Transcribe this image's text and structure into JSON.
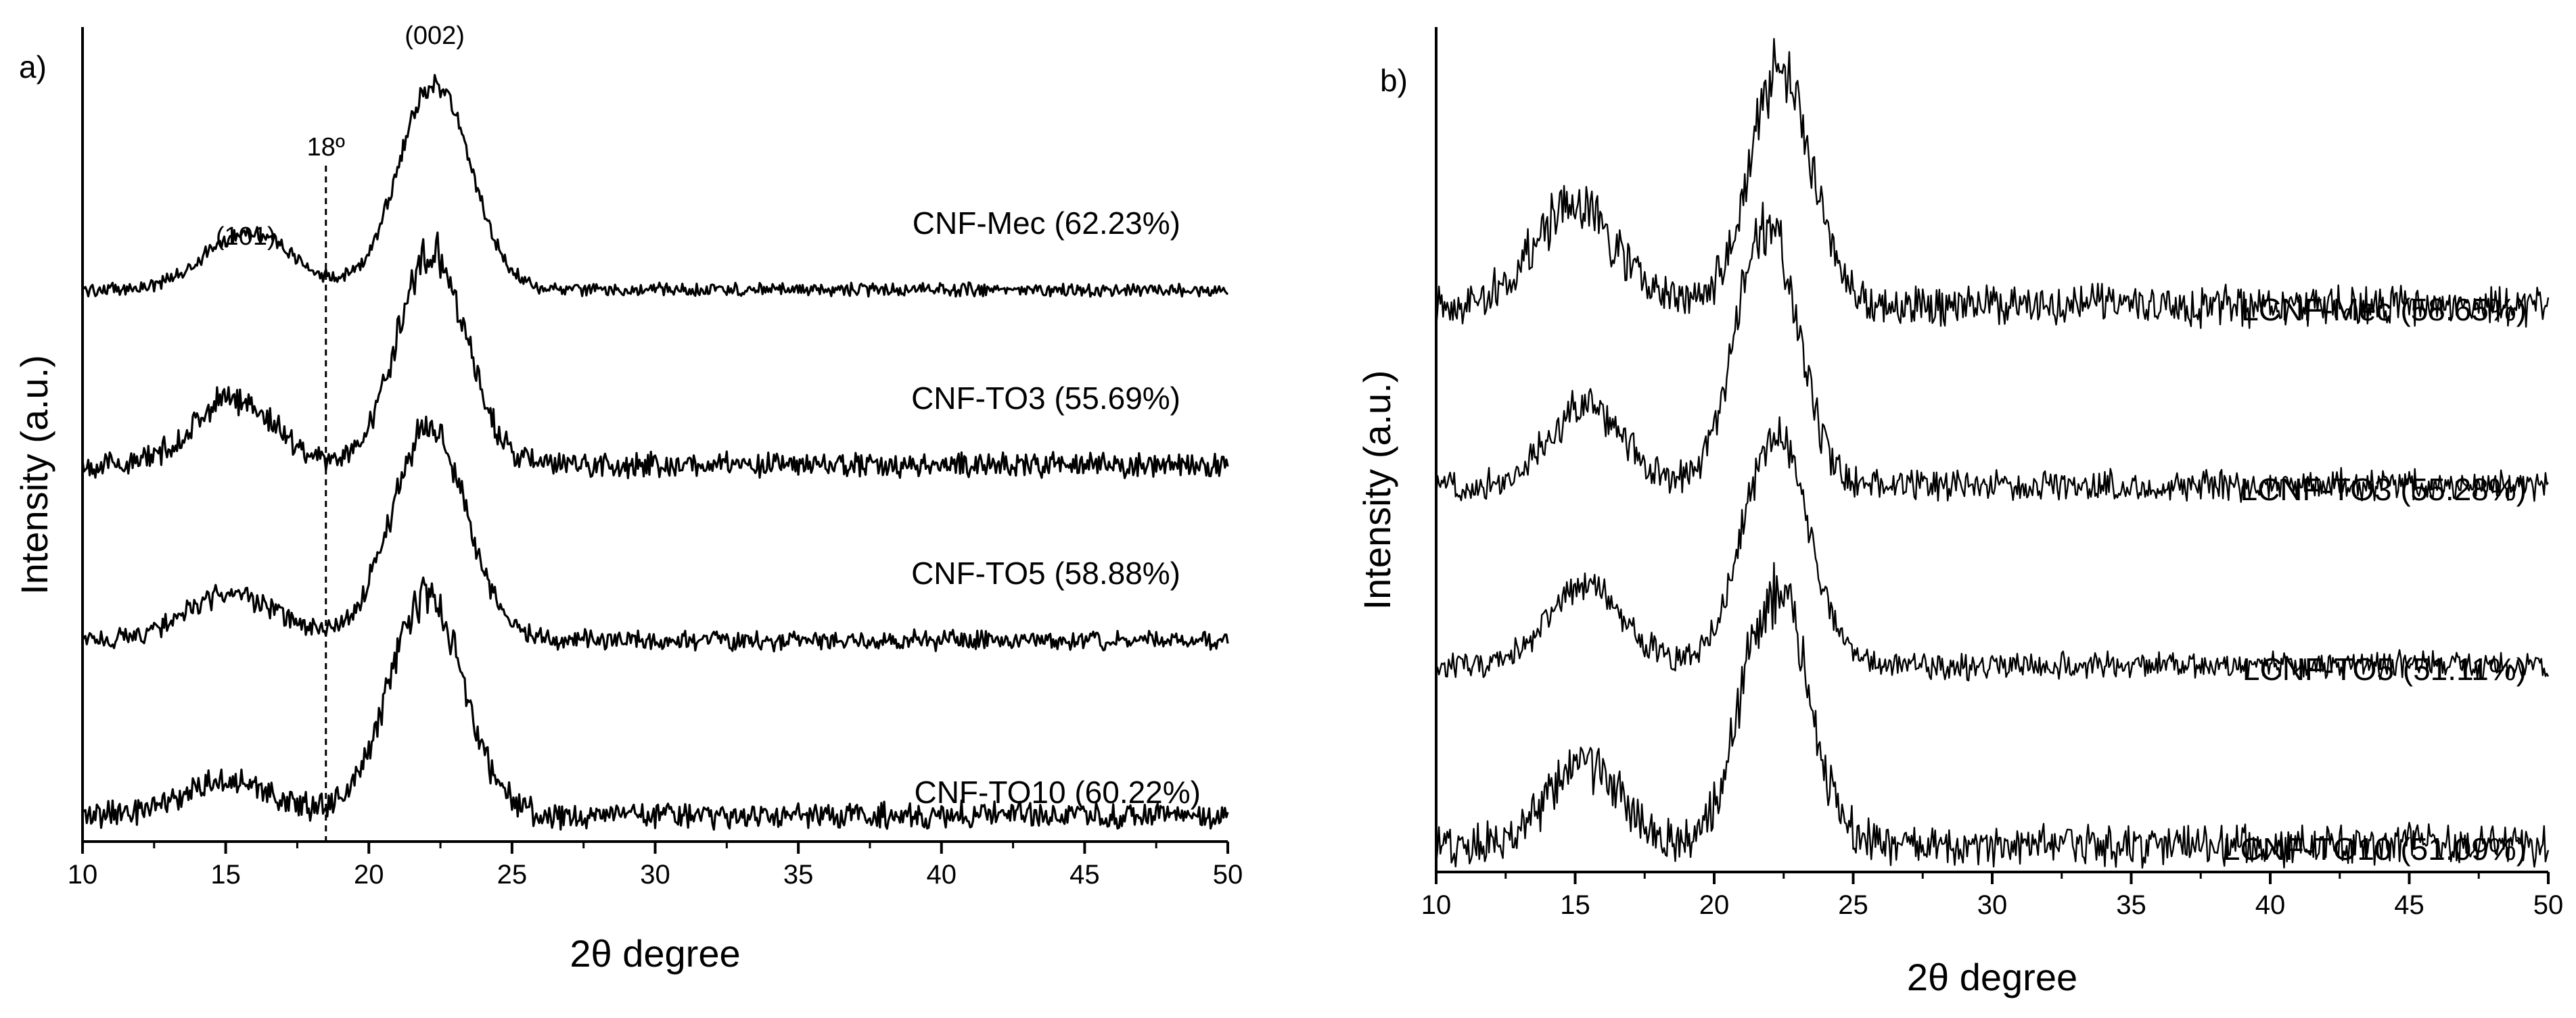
{
  "figure": {
    "panels": [
      "a",
      "b"
    ]
  },
  "chart_data": [
    {
      "type": "line",
      "panel_label": "a)",
      "title": "",
      "xlabel": "2θ degree",
      "ylabel": "Intensity (a.u.)",
      "xlim": [
        10,
        50
      ],
      "xticks": [
        10,
        15,
        20,
        25,
        30,
        35,
        40,
        45,
        50
      ],
      "xtick_labels": [
        "10",
        "15",
        "20",
        "25",
        "30",
        "35",
        "40",
        "45",
        "50"
      ],
      "y_units": "arbitrary, curves vertically offset",
      "grid": false,
      "annotations": [
        {
          "text": "(101)",
          "x": 15.7
        },
        {
          "text": "(002)",
          "x": 22.3
        },
        {
          "text": "18º",
          "x": 18.5,
          "kind": "dashed-vertical-line"
        }
      ],
      "series": [
        {
          "name": "CNF-Mec (62.23%)",
          "offset": 3.0,
          "peaks": [
            {
              "x": 15.8,
              "height": 0.33,
              "width": 1.5
            },
            {
              "x": 22.3,
              "height": 1.18,
              "width": 1.25
            }
          ],
          "noise": 0.03
        },
        {
          "name": "CNF-TO3 (55.69%)",
          "offset": 2.0,
          "peaks": [
            {
              "x": 15.3,
              "height": 0.38,
              "width": 1.4
            },
            {
              "x": 22.2,
              "height": 1.22,
              "width": 1.2
            }
          ],
          "noise": 0.055
        },
        {
          "name": "CNF-TO5 (58.88%)",
          "offset": 1.0,
          "peaks": [
            {
              "x": 15.2,
              "height": 0.26,
              "width": 1.6
            },
            {
              "x": 22.1,
              "height": 1.22,
              "width": 1.3
            }
          ],
          "noise": 0.045
        },
        {
          "name": "CNF-TO10 (60.22%)",
          "offset": 0.0,
          "peaks": [
            {
              "x": 15.1,
              "height": 0.2,
              "width": 1.6
            },
            {
              "x": 22.0,
              "height": 1.25,
              "width": 1.3
            }
          ],
          "noise": 0.06
        }
      ]
    },
    {
      "type": "line",
      "panel_label": "b)",
      "title": "",
      "xlabel": "2θ degree",
      "ylabel": "Intensity (a.u.)",
      "xlim": [
        10,
        50
      ],
      "xticks": [
        10,
        15,
        20,
        25,
        30,
        35,
        40,
        45,
        50
      ],
      "xtick_labels": [
        "10",
        "15",
        "20",
        "25",
        "30",
        "35",
        "40",
        "45",
        "50"
      ],
      "y_units": "arbitrary, curves vertically offset",
      "grid": false,
      "annotations": [],
      "series": [
        {
          "name": "LCNF-Mec (58.65%)",
          "offset": 3.0,
          "peaks": [
            {
              "x": 15.0,
              "height": 0.55,
              "width": 1.5
            },
            {
              "x": 22.4,
              "height": 1.3,
              "width": 1.1
            }
          ],
          "noise": 0.09
        },
        {
          "name": "LCNF-TO3 (55.28%)",
          "offset": 2.0,
          "peaks": [
            {
              "x": 15.4,
              "height": 0.45,
              "width": 1.3
            },
            {
              "x": 21.9,
              "height": 1.45,
              "width": 1.1
            }
          ],
          "noise": 0.07
        },
        {
          "name": "LCNF-TO5 (51.11%)",
          "offset": 1.0,
          "peaks": [
            {
              "x": 15.4,
              "height": 0.45,
              "width": 1.3
            },
            {
              "x": 22.2,
              "height": 1.3,
              "width": 1.15
            }
          ],
          "noise": 0.06
        },
        {
          "name": "LCNF-TO10 (51.09%)",
          "offset": 0.0,
          "peaks": [
            {
              "x": 15.3,
              "height": 0.45,
              "width": 1.3
            },
            {
              "x": 22.2,
              "height": 1.45,
              "width": 1.15
            }
          ],
          "noise": 0.09
        }
      ]
    }
  ]
}
